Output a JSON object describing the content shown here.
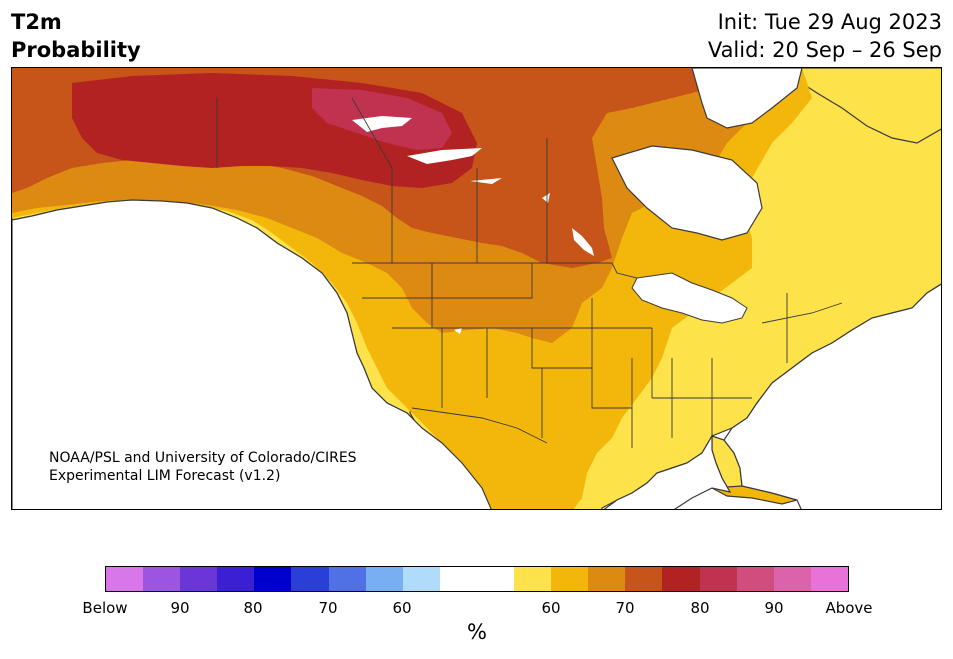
{
  "header": {
    "variable": "T2m",
    "product": "Probability",
    "init": "Init: Tue 29 Aug 2023",
    "valid": "Valid: 20 Sep – 26 Sep"
  },
  "credit": {
    "line1": "NOAA/PSL and University of Colorado/CIRES",
    "line2": "Experimental LIM Forecast (v1.2)"
  },
  "colorbar": {
    "unit_label": "%",
    "colors": [
      "#d877e8",
      "#9b55e0",
      "#6b36d8",
      "#3a1fd4",
      "#0000cc",
      "#2a3fd8",
      "#5070e6",
      "#78aef2",
      "#aedcfa",
      "#ffffff",
      "#ffffff",
      "#fde24a",
      "#f3b70b",
      "#dd8a12",
      "#c75418",
      "#b22222",
      "#c13250",
      "#d14d7d",
      "#dc62ab",
      "#e872d8"
    ],
    "ticks": [
      "Below",
      "90",
      "80",
      "70",
      "60",
      "60",
      "70",
      "80",
      "90",
      "Above"
    ]
  },
  "map": {
    "fill_colors": {
      "ocean": "#ffffff",
      "lake": "#ffffff",
      "prob_50_60_above": "#fde24a",
      "prob_60_70_above": "#f3b70b",
      "prob_70_75_above": "#dd8a12",
      "prob_75_80_above": "#c75418",
      "prob_80_85_above": "#b22222",
      "prob_85_90_above": "#c13250",
      "border": "#3a3a3a"
    }
  }
}
